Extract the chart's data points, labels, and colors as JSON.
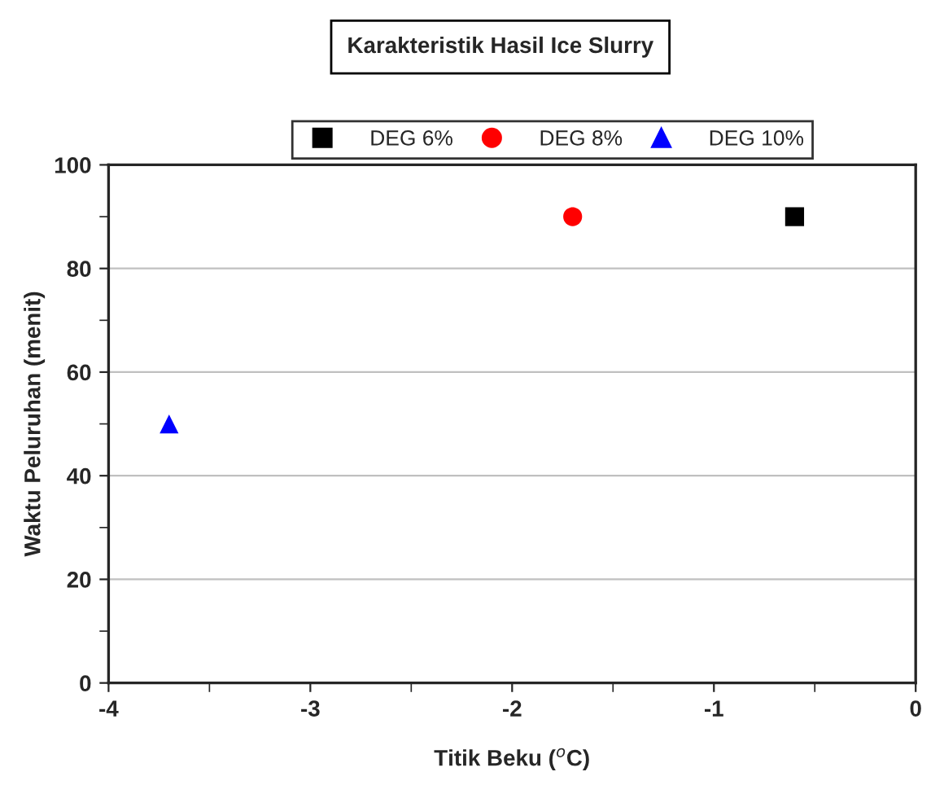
{
  "chart_data": {
    "type": "scatter",
    "title": "Karakteristik Hasil Ice Slurry",
    "xlabel": "Titik Beku ($^{o}$C)",
    "ylabel": "Waktu Peluruhan (menit)",
    "series": [
      {
        "name": "DEG 6%",
        "color": "#000000",
        "marker": "square",
        "x": [
          -0.6
        ],
        "values": [
          90
        ]
      },
      {
        "name": "DEG 8%",
        "color": "#ff0000",
        "marker": "circle",
        "x": [
          -1.7
        ],
        "values": [
          90
        ]
      },
      {
        "name": "DEG 10%",
        "color": "#0000ff",
        "marker": "triangle",
        "x": [
          -3.7
        ],
        "values": [
          50
        ]
      }
    ],
    "xlim": [
      -4,
      0
    ],
    "xticks": [
      -4,
      -3,
      -2,
      -1,
      0
    ],
    "ylim": [
      0,
      100
    ],
    "yticks": [
      0,
      20,
      40,
      60,
      80,
      100
    ],
    "grid": "y",
    "legend": "top"
  }
}
